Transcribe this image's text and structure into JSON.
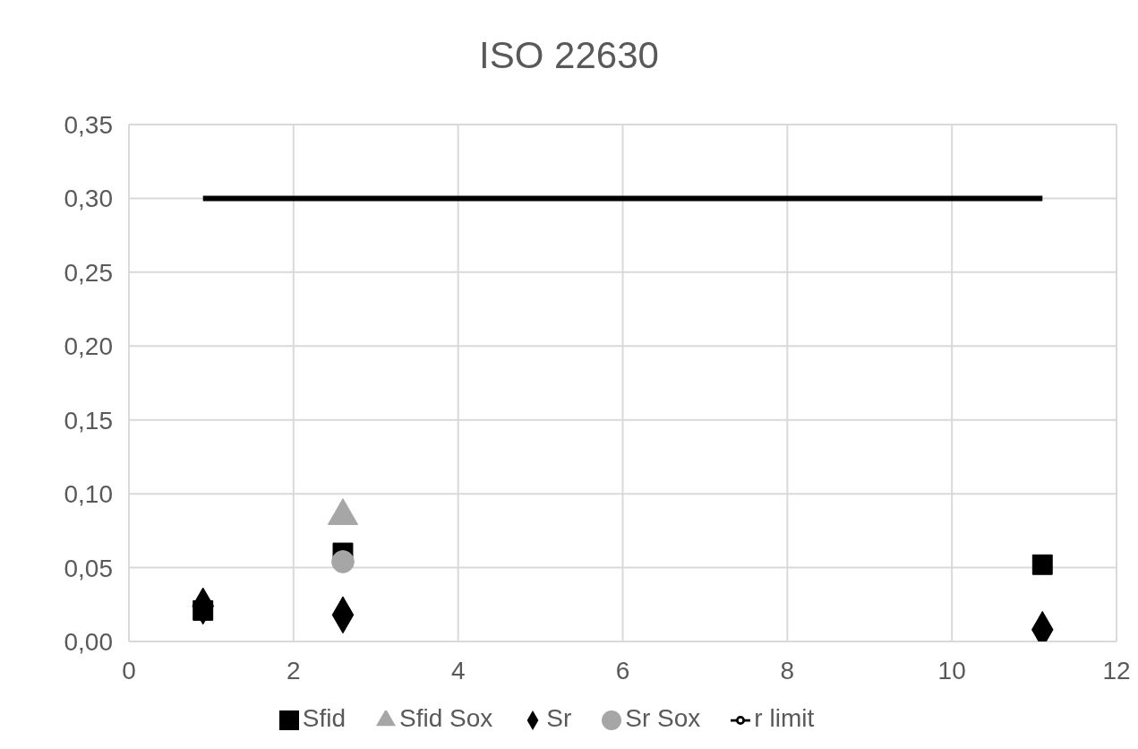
{
  "chart_data": {
    "type": "scatter",
    "title": "ISO 22630",
    "xlim": [
      0,
      12
    ],
    "xticks": [
      0,
      2,
      4,
      6,
      8,
      10,
      12
    ],
    "ylim": [
      0,
      0.35
    ],
    "yticks": [
      {
        "value": 0,
        "label": "0,00"
      },
      {
        "value": 0.05,
        "label": "0,05"
      },
      {
        "value": 0.1,
        "label": "0,10"
      },
      {
        "value": 0.15,
        "label": "0,15"
      },
      {
        "value": 0.2,
        "label": "0,20"
      },
      {
        "value": 0.25,
        "label": "0,25"
      },
      {
        "value": 0.3,
        "label": "0,30"
      },
      {
        "value": 0.35,
        "label": "0,35"
      }
    ],
    "grid": true,
    "legend": "bottom",
    "series": [
      {
        "name": "Sr",
        "color": "#000000",
        "marker": "diamond",
        "x": [
          0.9,
          2.6,
          11.1
        ],
        "values": [
          0.024,
          0.018,
          0.008
        ]
      },
      {
        "name": "Sfid",
        "color": "#000000",
        "marker": "square",
        "x": [
          0.9,
          2.6,
          11.1
        ],
        "values": [
          0.021,
          0.06,
          0.052
        ]
      },
      {
        "name": "Sr Sox",
        "color": "#a6a6a6",
        "marker": "circle",
        "x": [
          2.6
        ],
        "values": [
          0.054
        ]
      },
      {
        "name": "Sfid Sox",
        "color": "#a6a6a6",
        "marker": "triangle",
        "x": [
          2.6
        ],
        "values": [
          0.085
        ]
      },
      {
        "name": "r limit",
        "type": "line",
        "color": "#000000",
        "marker": "none",
        "line_style": "solid",
        "x": [
          0.9,
          11.1
        ],
        "values": [
          0.3,
          0.3
        ]
      }
    ]
  }
}
